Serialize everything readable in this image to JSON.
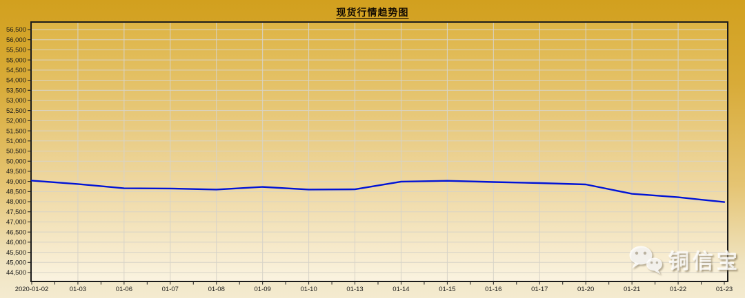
{
  "page": {
    "title": "现货行情趋势图"
  },
  "watermark": {
    "brand": "铜信宝",
    "icon": "wechat-icon"
  },
  "colors": {
    "accent_line": "#0013d6",
    "grid": "#d7d3c8",
    "axis": "#1b1b1b",
    "text": "#1a1a1a",
    "bg_top": "#d2a01e",
    "bg_bottom": "#f4ebd0",
    "plot_gradient": [
      "#deb444",
      "#eed7a0",
      "#faf3e0"
    ]
  },
  "chart_data": {
    "type": "line",
    "title": "现货行情趋势图",
    "xlabel": "",
    "ylabel": "",
    "grid": true,
    "legend_position": "none",
    "line_color": "#0013d6",
    "x_tick_labels": [
      "2020-01-02",
      "01-03",
      "01-06",
      "01-07",
      "01-08",
      "01-09",
      "01-10",
      "01-13",
      "01-14",
      "01-15",
      "01-16",
      "01-17",
      "01-20",
      "01-21",
      "01-22",
      "01-23"
    ],
    "values": [
      49040,
      48870,
      48660,
      48650,
      48600,
      48730,
      48600,
      48610,
      48990,
      49030,
      48970,
      48920,
      48850,
      48390,
      48220,
      47980
    ],
    "y_axis": {
      "min": 44500,
      "max": 56500,
      "step": 500,
      "tick_labels": [
        "56,500",
        "56,000",
        "55,500",
        "55,000",
        "54,500",
        "54,000",
        "53,500",
        "53,000",
        "52,500",
        "52,000",
        "51,500",
        "51,000",
        "50,500",
        "50,000",
        "49,500",
        "49,000",
        "48,500",
        "48,000",
        "47,500",
        "47,000",
        "46,500",
        "46,000",
        "45,500",
        "45,000",
        "44,500"
      ]
    },
    "ylim": [
      44050,
      56850
    ]
  }
}
